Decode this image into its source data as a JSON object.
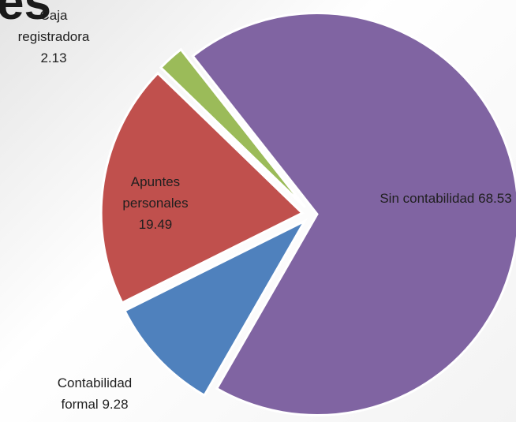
{
  "chart_data": {
    "type": "pie",
    "title": "es",
    "categories": [
      "Sin contabilidad",
      "Contabilidad formal",
      "Apuntes personales",
      "Caja registradora"
    ],
    "values": [
      68.53,
      9.28,
      19.49,
      2.13
    ],
    "colors": [
      "#8064a2",
      "#4f81bd",
      "#c0504d",
      "#9bbb59"
    ]
  }
}
